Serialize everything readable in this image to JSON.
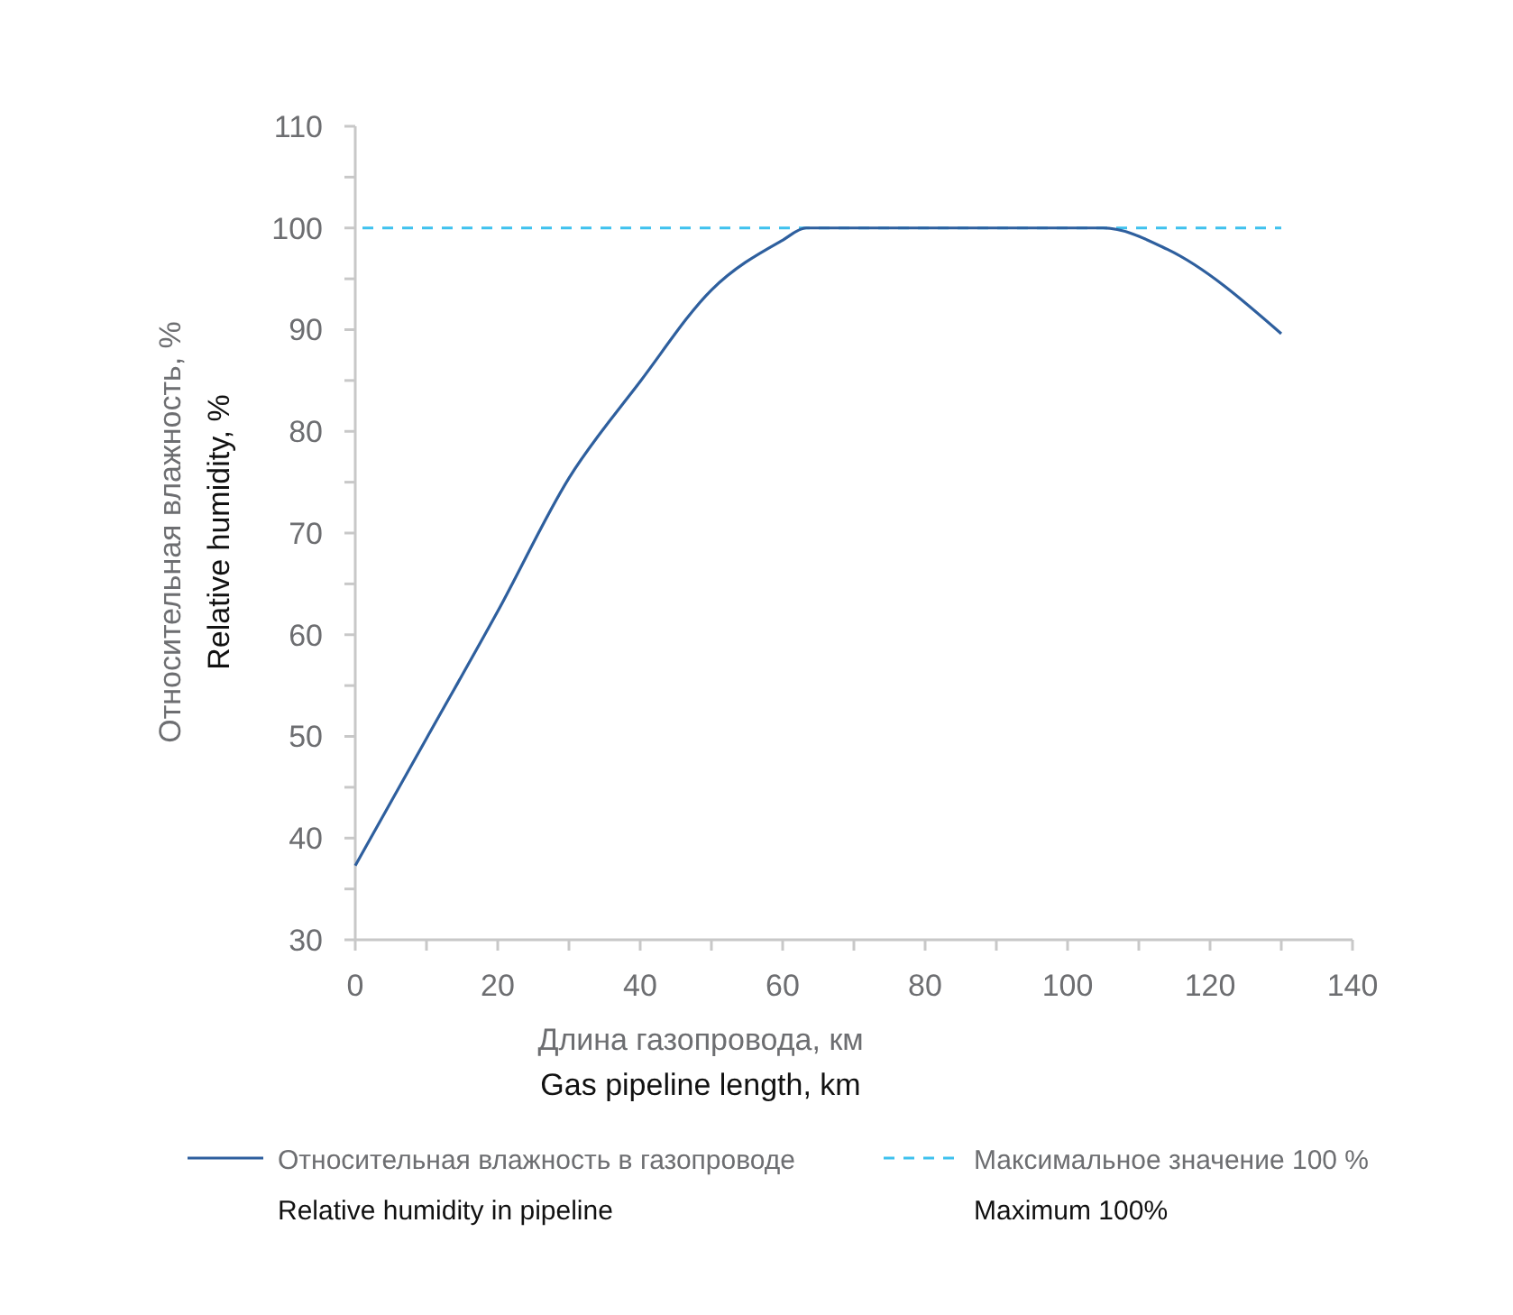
{
  "chart_data": {
    "type": "line",
    "xlabel": "Длина газопровода, км\nGas pipeline length, km",
    "ylabel": "Относительная влажность, %\nRelative humidity, %",
    "xlim": [
      0,
      140
    ],
    "xticks": [
      0,
      20,
      40,
      60,
      80,
      100,
      120,
      140
    ],
    "ylim": [
      30,
      110
    ],
    "yticks": [
      30,
      40,
      50,
      60,
      70,
      80,
      90,
      100,
      110
    ],
    "grid": false,
    "legend": "bottom",
    "marker": "none",
    "series": [
      {
        "name": "Относительная влажность в газопроводе\nRelative humidity in pipeline",
        "color": "#2e5f9e",
        "line_style": "solid",
        "x": [
          0,
          10,
          20,
          30,
          40,
          50,
          60,
          63.3,
          105,
          114,
          130
        ],
        "values": [
          37.3,
          49.8,
          62.3,
          75.4,
          84.9,
          93.9,
          98.8,
          100,
          100,
          97.9,
          89.6
        ]
      }
    ],
    "ref_lines": [
      {
        "axis": "y",
        "value": 100,
        "label": "Максимальное значение 100 %\nMaximum 100%",
        "color": "#3ec1ee",
        "line_style": "dashed"
      }
    ]
  }
}
